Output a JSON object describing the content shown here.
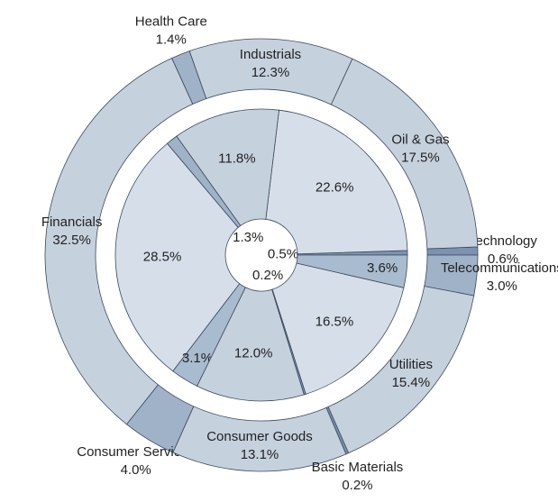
{
  "chart_data": [
    {
      "type": "donut",
      "categories": [
        "Technology",
        "Oil & Gas",
        "Industrials",
        "Health Care",
        "Financials",
        "Consumer Services",
        "Consumer Goods",
        "Basic Materials",
        "Utilities",
        "Telecommunications"
      ],
      "values": [
        0.6,
        17.5,
        12.3,
        1.4,
        32.5,
        4.0,
        13.1,
        0.2,
        15.4,
        3.0
      ],
      "value_labels": [
        "0.6%",
        "17.5%",
        "12.3%",
        "1.4%",
        "32.5%",
        "4.0%",
        "13.1%",
        "0.2%",
        "15.4%",
        "3.0%"
      ],
      "colors": [
        "#7b93b1",
        "#c6d1de",
        "#c6d1de",
        "#9fb2c8",
        "#c6d1de",
        "#9fb2c8",
        "#c6d1de",
        "#7b93b1",
        "#c6d1de",
        "#9fb2c8"
      ]
    },
    {
      "type": "donut",
      "values": [
        0.5,
        22.6,
        11.8,
        1.3,
        28.5,
        3.1,
        12.0,
        0.2,
        16.5,
        3.6
      ],
      "value_labels": [
        "0.5%",
        "22.6%",
        "11.8%",
        "1.3%",
        "28.5%",
        "3.1%",
        "12.0%",
        "0.2%",
        "16.5%",
        "3.6%"
      ],
      "colors": [
        "#7b93b1",
        "#d6dfe9",
        "#c6d1de",
        "#9fb2c8",
        "#d6dfe9",
        "#a9bbcf",
        "#c6d1de",
        "#7b93b1",
        "#d6dfe9",
        "#a9bbcf"
      ]
    }
  ]
}
